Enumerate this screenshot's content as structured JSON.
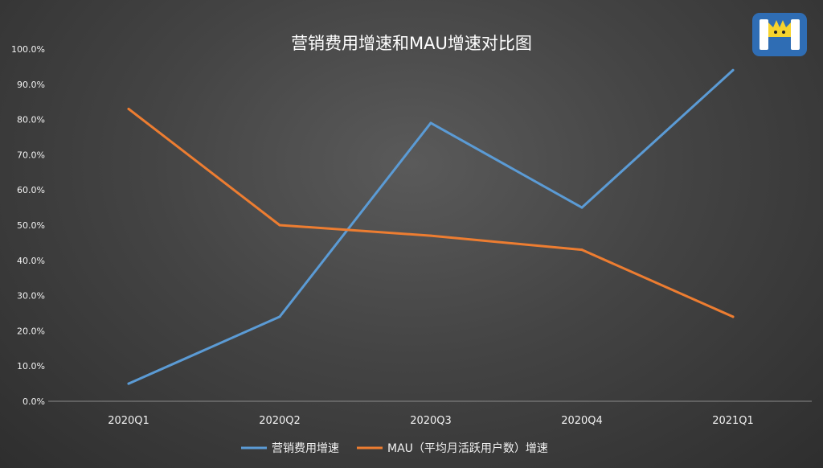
{
  "chart_data": {
    "type": "line",
    "title": "营销费用增速和MAU增速对比图",
    "categories": [
      "2020Q1",
      "2020Q2",
      "2020Q3",
      "2020Q4",
      "2021Q1"
    ],
    "ylim": [
      0,
      100
    ],
    "y_ticks": [
      "0.0%",
      "10.0%",
      "20.0%",
      "30.0%",
      "40.0%",
      "50.0%",
      "60.0%",
      "70.0%",
      "80.0%",
      "90.0%",
      "100.0%"
    ],
    "series": [
      {
        "name": "营销费用增速",
        "color": "#5b9bd5",
        "values": [
          5,
          24,
          79,
          55,
          94
        ]
      },
      {
        "name": "MAU（平均月活跃用户数）增速",
        "color": "#ed7d31",
        "values": [
          83,
          50,
          47,
          43,
          24
        ]
      }
    ],
    "legend_position": "bottom",
    "grid": false
  },
  "logo": {
    "icon": "cartoon-mascot-logo",
    "colors": [
      "#2f6db4",
      "#f6d32d"
    ]
  }
}
